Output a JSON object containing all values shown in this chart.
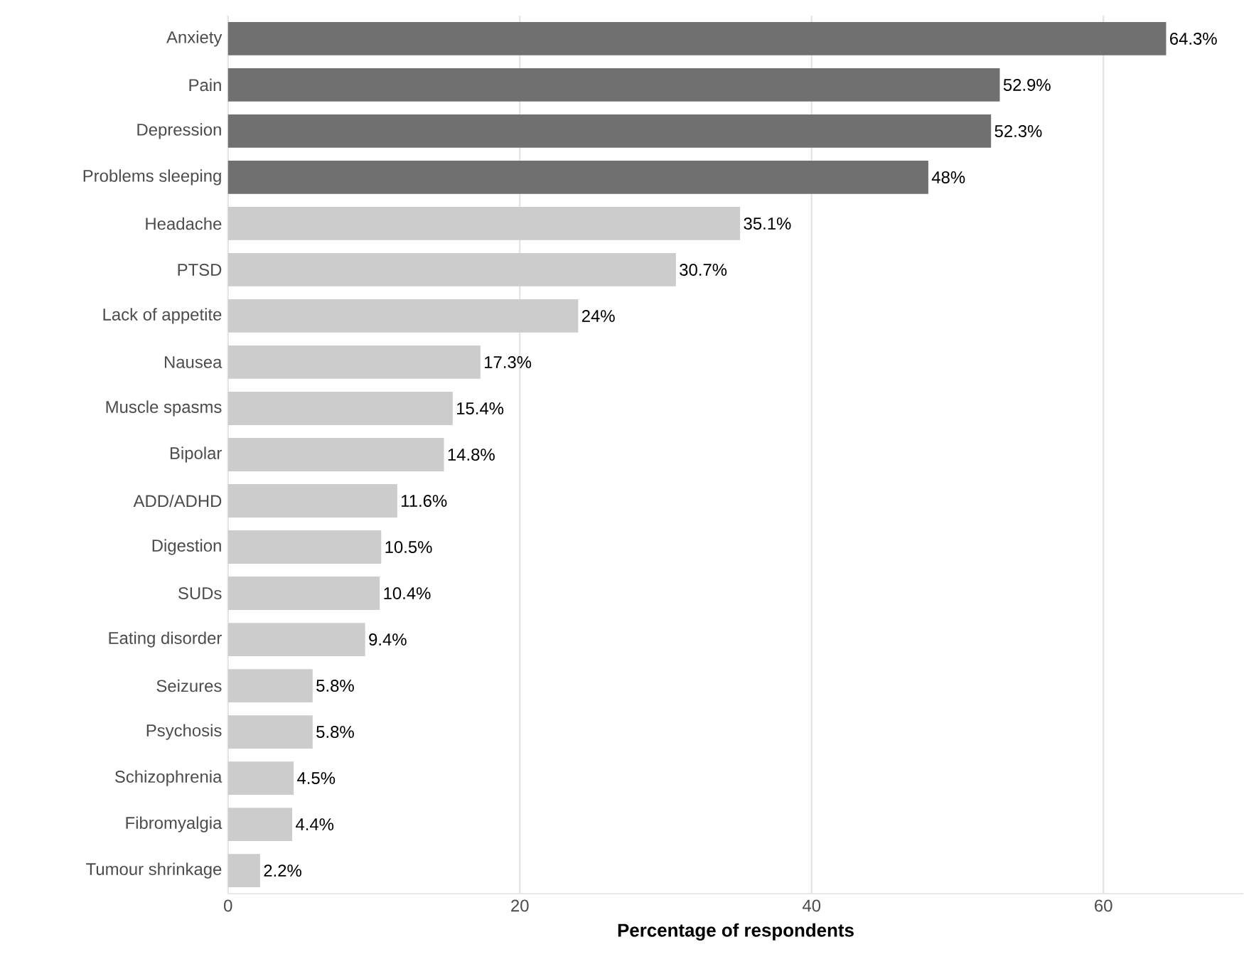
{
  "chart_data": {
    "type": "bar",
    "orientation": "horizontal",
    "xlabel": "Percentage of respondents",
    "categories": [
      "Anxiety",
      "Pain",
      "Depression",
      "Problems sleeping",
      "Headache",
      "PTSD",
      "Lack of appetite",
      "Nausea",
      "Muscle spasms",
      "Bipolar",
      "ADD/ADHD",
      "Digestion",
      "SUDs",
      "Eating disorder",
      "Seizures",
      "Psychosis",
      "Schizophrenia",
      "Fibromyalgia",
      "Tumour shrinkage"
    ],
    "values": [
      64.3,
      52.9,
      52.3,
      48,
      35.1,
      30.7,
      24,
      17.3,
      15.4,
      14.8,
      11.6,
      10.5,
      10.4,
      9.4,
      5.8,
      5.8,
      4.5,
      4.4,
      2.2
    ],
    "value_labels": [
      "64.3%",
      "52.9%",
      "52.3%",
      "48%",
      "35.1%",
      "30.7%",
      "24%",
      "17.3%",
      "15.4%",
      "14.8%",
      "11.6%",
      "10.5%",
      "10.4%",
      "9.4%",
      "5.8%",
      "5.8%",
      "4.5%",
      "4.4%",
      "2.2%"
    ],
    "colors": [
      "#707070",
      "#707070",
      "#707070",
      "#707070",
      "#cccccc",
      "#cccccc",
      "#cccccc",
      "#cccccc",
      "#cccccc",
      "#cccccc",
      "#cccccc",
      "#cccccc",
      "#cccccc",
      "#cccccc",
      "#cccccc",
      "#cccccc",
      "#cccccc",
      "#cccccc",
      "#cccccc"
    ],
    "xlim": [
      0,
      69.6
    ],
    "xticks": [
      0,
      20,
      40,
      60
    ],
    "grid": "x"
  }
}
